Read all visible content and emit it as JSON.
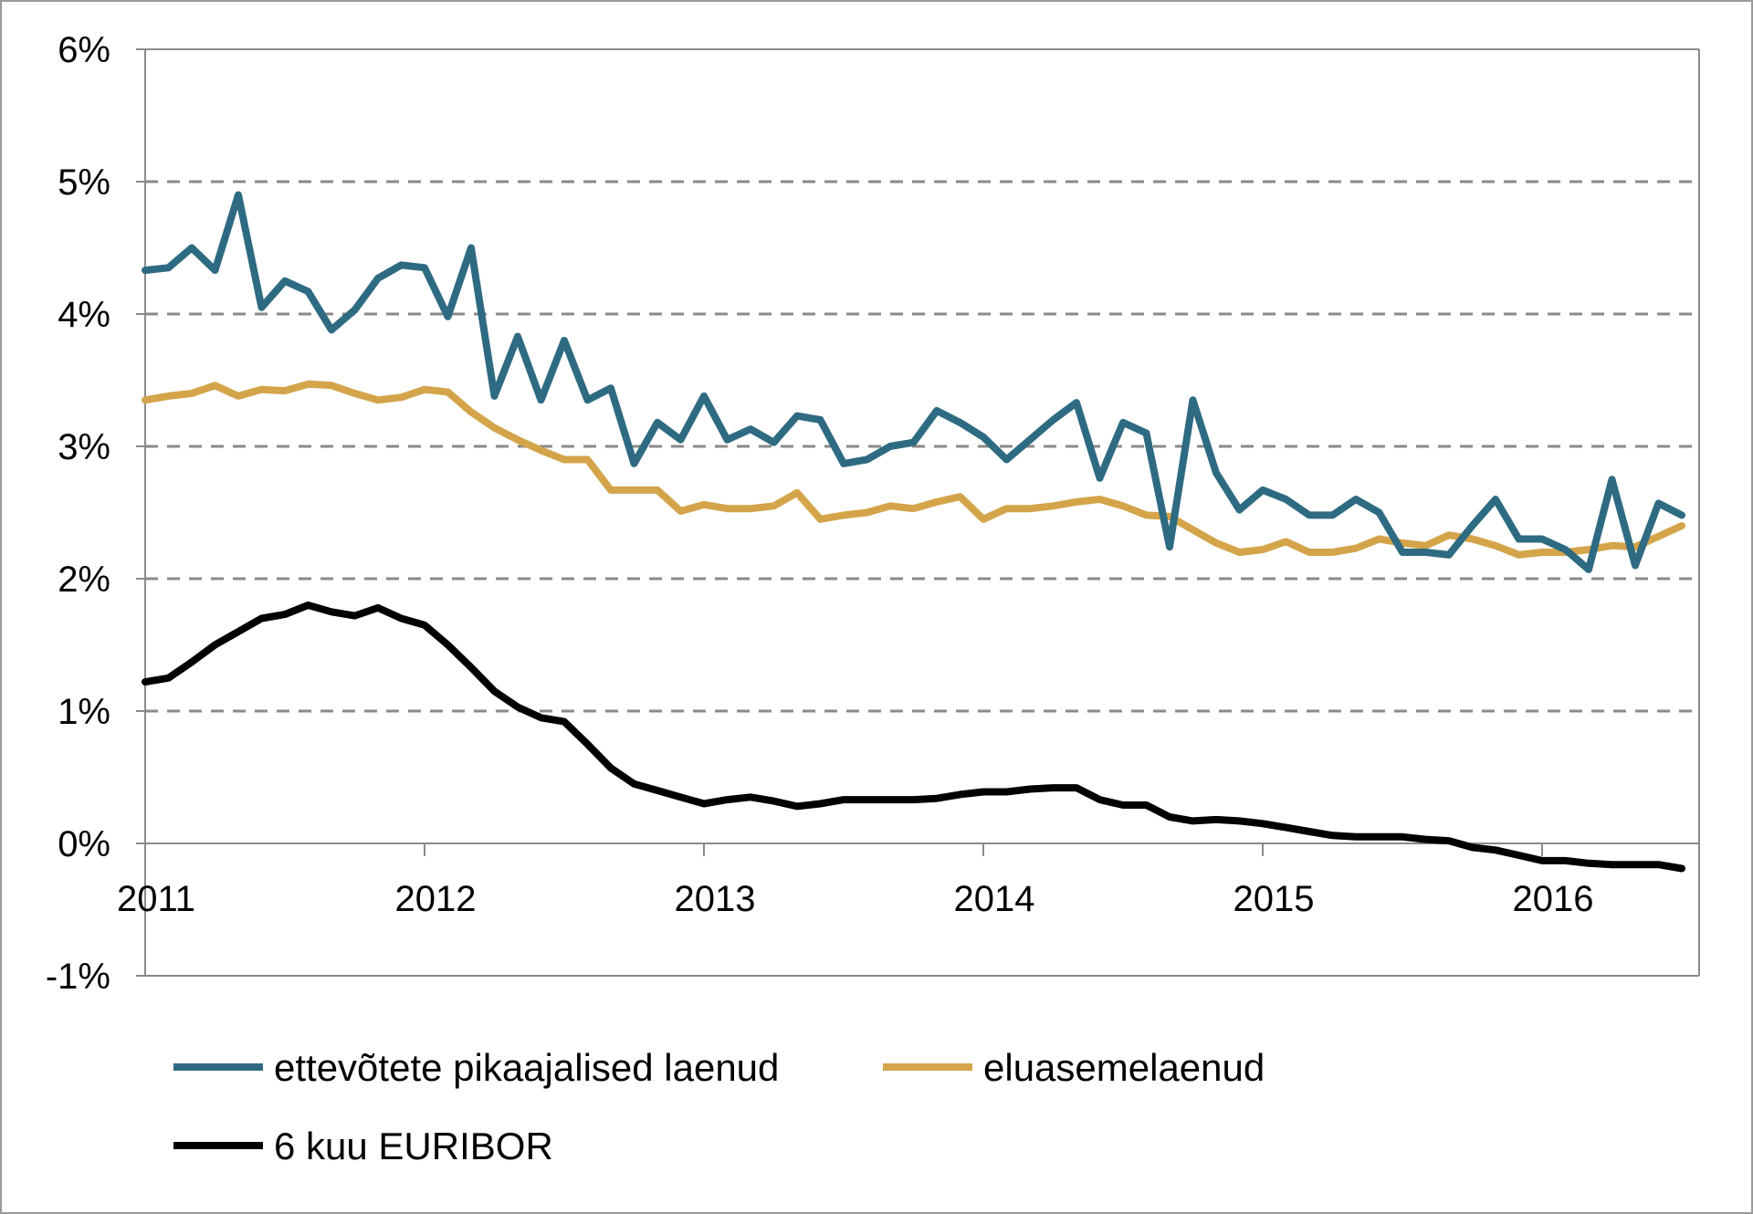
{
  "chart_data": {
    "type": "line",
    "title": "",
    "xlabel": "",
    "ylabel": "",
    "x_start": "2011-01",
    "frequency": "monthly",
    "x_tick_labels": [
      "2011",
      "2012",
      "2013",
      "2014",
      "2015",
      "2016"
    ],
    "y_tick_labels": [
      "6%",
      "5%",
      "4%",
      "3%",
      "2%",
      "1%",
      "0%",
      "-1%"
    ],
    "ylim": [
      -1,
      6
    ],
    "grid": "horizontal dashed",
    "legend_position": "bottom",
    "series": [
      {
        "name": "ettevõtete pikaajalised laenud",
        "color": "#2e6b82",
        "values": [
          4.33,
          4.35,
          4.5,
          4.33,
          4.9,
          4.05,
          4.25,
          4.17,
          3.88,
          4.03,
          4.27,
          4.37,
          4.35,
          3.98,
          4.5,
          3.38,
          3.83,
          3.35,
          3.8,
          3.35,
          3.44,
          2.87,
          3.18,
          3.05,
          3.38,
          3.05,
          3.13,
          3.03,
          3.23,
          3.2,
          2.87,
          2.9,
          3.0,
          3.03,
          3.27,
          3.18,
          3.07,
          2.9,
          3.05,
          3.2,
          3.33,
          2.76,
          3.18,
          3.1,
          2.24,
          3.35,
          2.8,
          2.52,
          2.67,
          2.6,
          2.48,
          2.48,
          2.6,
          2.5,
          2.2,
          2.2,
          2.18,
          2.4,
          2.6,
          2.3,
          2.3,
          2.22,
          2.07,
          2.75,
          2.1,
          2.57,
          2.48
        ]
      },
      {
        "name": "eluasemelaenud",
        "color": "#d4a44a",
        "values": [
          3.35,
          3.38,
          3.4,
          3.46,
          3.38,
          3.43,
          3.42,
          3.47,
          3.46,
          3.4,
          3.35,
          3.37,
          3.43,
          3.41,
          3.26,
          3.14,
          3.05,
          2.97,
          2.9,
          2.9,
          2.67,
          2.67,
          2.67,
          2.51,
          2.56,
          2.53,
          2.53,
          2.55,
          2.65,
          2.45,
          2.48,
          2.5,
          2.55,
          2.53,
          2.58,
          2.62,
          2.45,
          2.53,
          2.53,
          2.55,
          2.58,
          2.6,
          2.55,
          2.48,
          2.47,
          2.37,
          2.27,
          2.2,
          2.22,
          2.28,
          2.2,
          2.2,
          2.23,
          2.3,
          2.27,
          2.25,
          2.33,
          2.3,
          2.25,
          2.18,
          2.2,
          2.2,
          2.22,
          2.25,
          2.24,
          2.32,
          2.4
        ]
      },
      {
        "name": "6 kuu EURIBOR",
        "color": "#000000",
        "values": [
          1.22,
          1.25,
          1.37,
          1.5,
          1.6,
          1.7,
          1.73,
          1.8,
          1.75,
          1.72,
          1.78,
          1.7,
          1.65,
          1.5,
          1.33,
          1.15,
          1.03,
          0.95,
          0.92,
          0.75,
          0.57,
          0.45,
          0.4,
          0.35,
          0.3,
          0.33,
          0.35,
          0.32,
          0.28,
          0.3,
          0.33,
          0.33,
          0.33,
          0.33,
          0.34,
          0.37,
          0.39,
          0.39,
          0.41,
          0.42,
          0.42,
          0.33,
          0.29,
          0.29,
          0.2,
          0.17,
          0.18,
          0.17,
          0.15,
          0.12,
          0.09,
          0.06,
          0.05,
          0.05,
          0.05,
          0.03,
          0.02,
          -0.03,
          -0.05,
          -0.09,
          -0.13,
          -0.13,
          -0.15,
          -0.16,
          -0.16,
          -0.16,
          -0.19
        ]
      }
    ]
  }
}
